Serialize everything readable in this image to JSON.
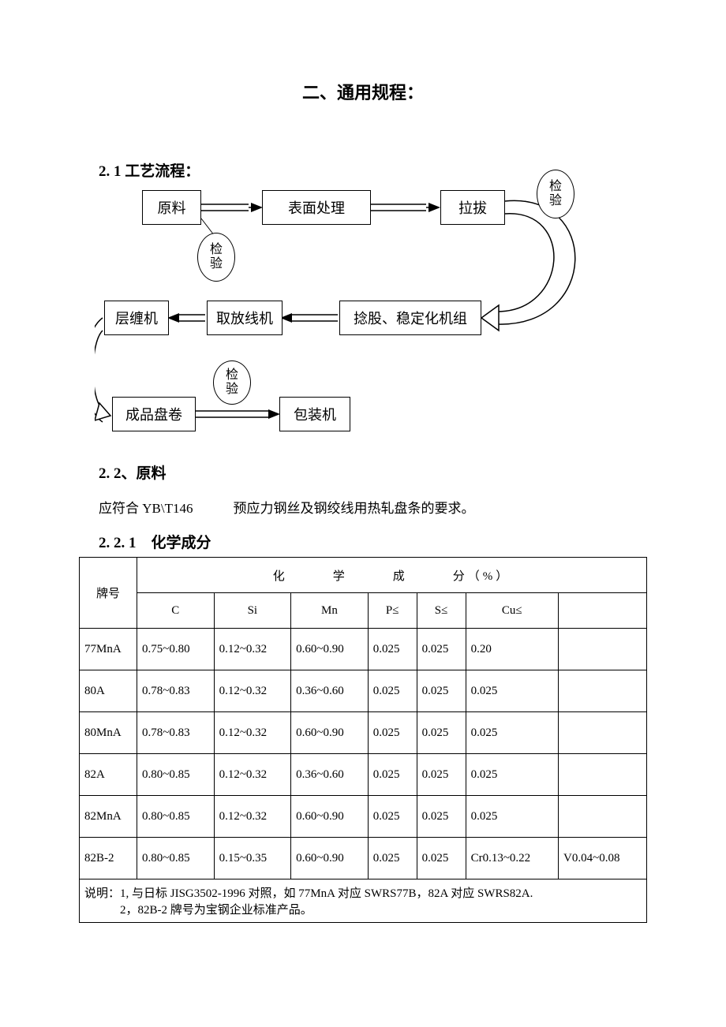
{
  "title": "二、通用规程：",
  "sections": {
    "s21": "2. 1 工艺流程：",
    "s22": "2. 2、原料",
    "s221": "2. 2. 1　化学成分"
  },
  "flowchart": {
    "nodes": {
      "raw": "原料",
      "surface": "表面处理",
      "draw": "拉拔",
      "strand": "捻股、稳定化机组",
      "payoff": "取放线机",
      "layer": "层缠机",
      "coil": "成品盘卷",
      "pack": "包装机"
    },
    "checks": {
      "c1": "检验",
      "c2": "检验",
      "c3": "检验"
    }
  },
  "body": {
    "rawMaterialReq": "应符合 YB\\T146　　　预应力钢丝及钢绞线用热轧盘条的要求。"
  },
  "table": {
    "header": {
      "grade": "牌号",
      "chem": "化　　　学　　　成　　　分（%）",
      "C": "C",
      "Si": "Si",
      "Mn": "Mn",
      "P": "P≤",
      "S": "S≤",
      "Cu": "Cu≤",
      "extra": ""
    },
    "rows": [
      {
        "grade": "77MnA",
        "C": "0.75~0.80",
        "Si": "0.12~0.32",
        "Mn": "0.60~0.90",
        "P": "0.025",
        "S": "0.025",
        "Cu": "0.20",
        "extra": ""
      },
      {
        "grade": "80A",
        "C": "0.78~0.83",
        "Si": "0.12~0.32",
        "Mn": "0.36~0.60",
        "P": "0.025",
        "S": "0.025",
        "Cu": "0.025",
        "extra": ""
      },
      {
        "grade": "80MnA",
        "C": "0.78~0.83",
        "Si": "0.12~0.32",
        "Mn": "0.60~0.90",
        "P": "0.025",
        "S": "0.025",
        "Cu": "0.025",
        "extra": ""
      },
      {
        "grade": "82A",
        "C": "0.80~0.85",
        "Si": "0.12~0.32",
        "Mn": "0.36~0.60",
        "P": "0.025",
        "S": "0.025",
        "Cu": "0.025",
        "extra": ""
      },
      {
        "grade": "82MnA",
        "C": "0.80~0.85",
        "Si": "0.12~0.32",
        "Mn": "0.60~0.90",
        "P": "0.025",
        "S": "0.025",
        "Cu": "0.025",
        "extra": ""
      },
      {
        "grade": "82B-2",
        "C": "0.80~0.85",
        "Si": "0.15~0.35",
        "Mn": "0.60~0.90",
        "P": "0.025",
        "S": "0.025",
        "Cu": "Cr0.13~0.22",
        "extra": "V0.04~0.08"
      }
    ],
    "note1": "说明：1,  与日标 JISG3502-1996 对照，如 77MnA 对应 SWRS77B，82A 对应 SWRS82A.",
    "note2": "　　　2，82B-2 牌号为宝钢企业标准产品。"
  },
  "style": {
    "pageWidth": 920,
    "pageHeight": 1302,
    "bodyFont": "SimSun, serif",
    "titleFontSize": 22,
    "headingFontSize": 19,
    "bodyFontSize": 17,
    "tableFontSize": 15,
    "borderColor": "#000000",
    "backgroundColor": "#ffffff",
    "textColor": "#000000"
  }
}
